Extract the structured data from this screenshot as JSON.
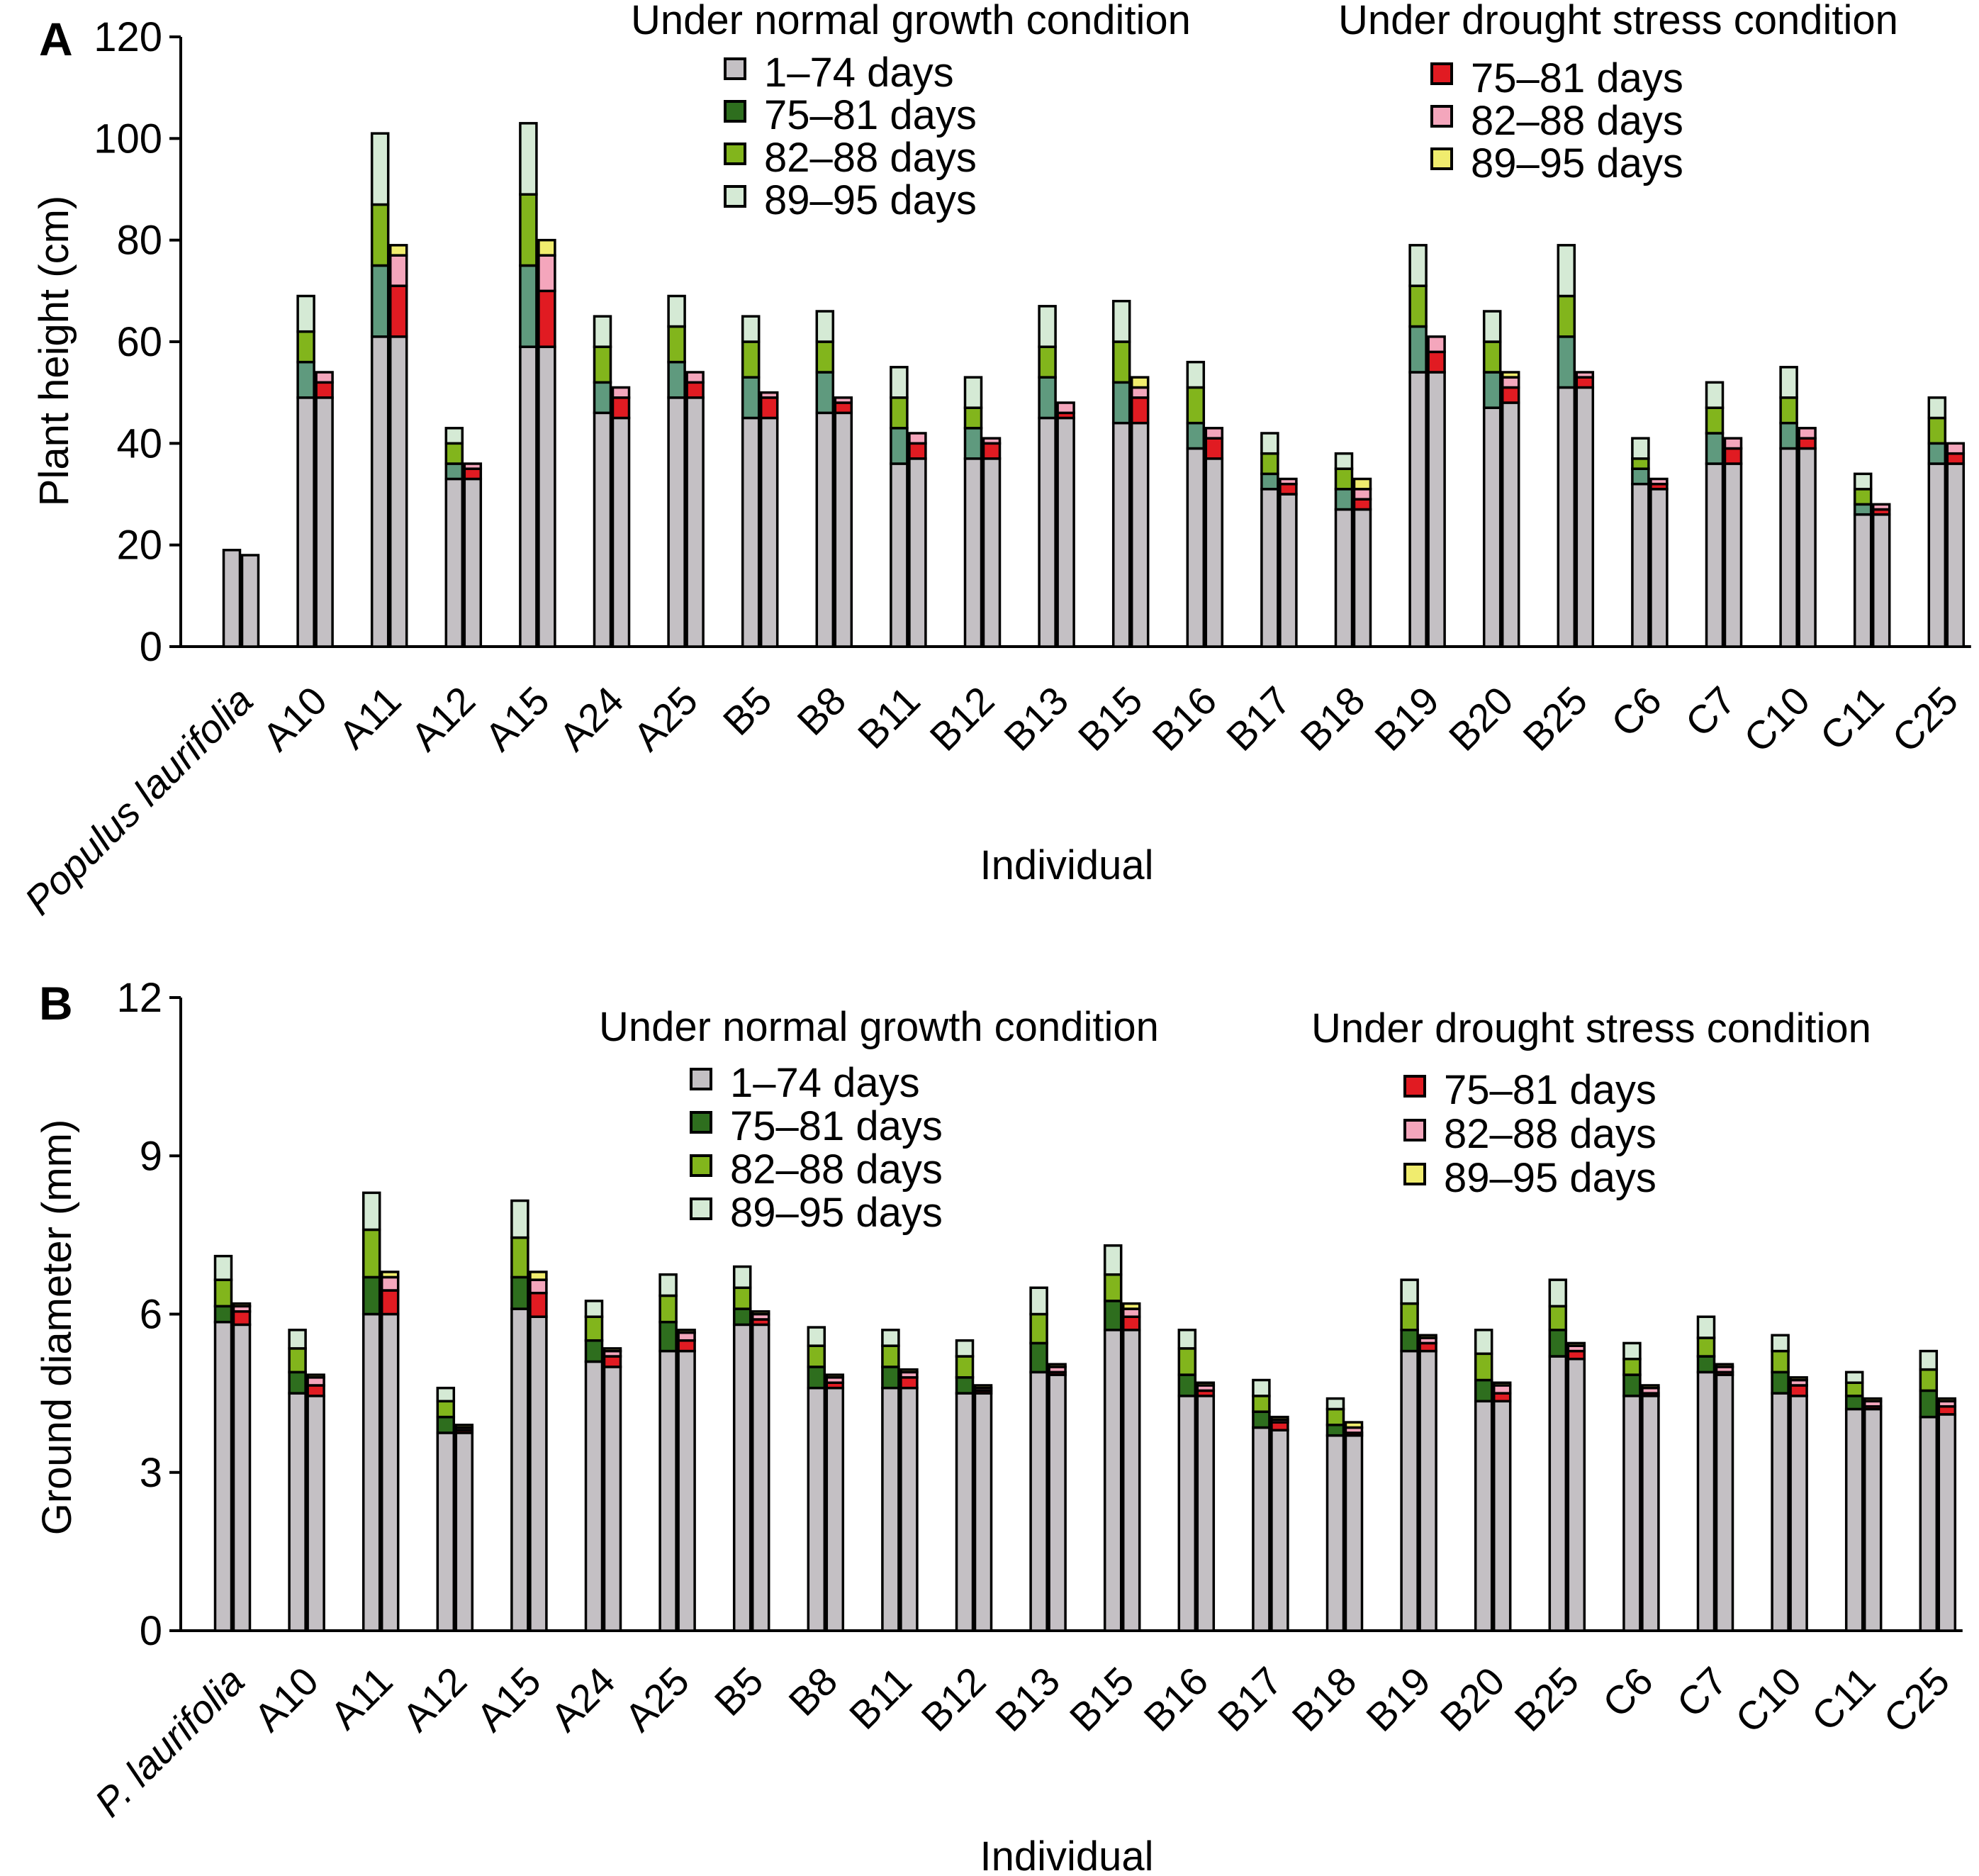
{
  "colors": {
    "d1_74": "#c4c0c4",
    "n75_81_height": "#5f9a7e",
    "n75_81_diameter": "#2e6e1e",
    "n82_88": "#82b51c",
    "n89_95": "#d5ead5",
    "s75_81": "#e11b22",
    "s82_88": "#f4a6bc",
    "s89_95": "#f0ec6e",
    "outline": "#000000"
  },
  "chart_data": [
    {
      "type": "bar",
      "stacked": true,
      "panel_label": "A",
      "xlabel": "Individual",
      "ylabel": "Plant height (cm)",
      "ylim": [
        0,
        120
      ],
      "yticks": [
        0,
        20,
        40,
        60,
        80,
        100,
        120
      ],
      "categories": [
        "Populus laurifolia",
        "A10",
        "A11",
        "A12",
        "A15",
        "A24",
        "A25",
        "B5",
        "B8",
        "B11",
        "B12",
        "B13",
        "B15",
        "B16",
        "B17",
        "B18",
        "B19",
        "B20",
        "B25",
        "C6",
        "C7",
        "C10",
        "C11",
        "C25"
      ],
      "italic_categories": [
        "Populus laurifolia"
      ],
      "legend": {
        "normal_title": "Under normal growth condition",
        "normal_items": [
          "1–74 days",
          "75–81 days",
          "82–88 days",
          "89–95 days"
        ],
        "drought_title": "Under drought stress condition",
        "drought_items": [
          "75–81 days",
          "82–88 days",
          "89–95 days"
        ]
      },
      "normal": {
        "d1_74": [
          19,
          49,
          61,
          33,
          59,
          46,
          49,
          45,
          46,
          36,
          37,
          45,
          44,
          39,
          31,
          27,
          54,
          47,
          51,
          32,
          36,
          39,
          26,
          36
        ],
        "d75_81": [
          0,
          7,
          14,
          3,
          16,
          6,
          7,
          8,
          8,
          7,
          6,
          8,
          8,
          5,
          3,
          4,
          9,
          7,
          10,
          3,
          6,
          5,
          2,
          4
        ],
        "d82_88": [
          0,
          6,
          12,
          4,
          14,
          7,
          7,
          7,
          6,
          6,
          4,
          6,
          8,
          7,
          4,
          4,
          8,
          6,
          8,
          2,
          5,
          5,
          3,
          5
        ],
        "d89_95": [
          0,
          7,
          14,
          3,
          14,
          6,
          6,
          5,
          6,
          6,
          6,
          8,
          8,
          5,
          4,
          3,
          8,
          6,
          10,
          4,
          5,
          6,
          3,
          4
        ]
      },
      "drought": {
        "d1_74": [
          18,
          49,
          61,
          33,
          59,
          45,
          49,
          45,
          46,
          37,
          37,
          45,
          44,
          37,
          30,
          27,
          54,
          48,
          51,
          31,
          36,
          39,
          26,
          36
        ],
        "d75_81": [
          0,
          3,
          10,
          2,
          11,
          4,
          3,
          4,
          2,
          3,
          3,
          1,
          5,
          4,
          2,
          2,
          4,
          3,
          2,
          1,
          3,
          2,
          1,
          2
        ],
        "d82_88": [
          0,
          2,
          6,
          1,
          7,
          2,
          2,
          1,
          1,
          2,
          1,
          2,
          2,
          2,
          1,
          2,
          3,
          2,
          1,
          1,
          2,
          2,
          1,
          2
        ],
        "d89_95": [
          0,
          0,
          2,
          0,
          3,
          0,
          0,
          0,
          0,
          0,
          0,
          0,
          2,
          0,
          0,
          2,
          0,
          1,
          0,
          0,
          0,
          0,
          0,
          0
        ]
      }
    },
    {
      "type": "bar",
      "stacked": true,
      "panel_label": "B",
      "xlabel": "Individual",
      "ylabel": "Ground diameter (mm)",
      "ylim": [
        0,
        12
      ],
      "yticks": [
        0,
        3,
        6,
        9,
        12
      ],
      "categories": [
        "P. laurifolia",
        "A10",
        "A11",
        "A12",
        "A15",
        "A24",
        "A25",
        "B5",
        "B8",
        "B11",
        "B12",
        "B13",
        "B15",
        "B16",
        "B17",
        "B18",
        "B19",
        "B20",
        "B25",
        "C6",
        "C7",
        "C10",
        "C11",
        "C25"
      ],
      "italic_categories": [
        "P. laurifolia"
      ],
      "legend": {
        "normal_title": "Under normal growth condition",
        "normal_items": [
          "1–74 days",
          "75–81 days",
          "82–88 days",
          "89–95 days"
        ],
        "drought_title": "Under drought stress condition",
        "drought_items": [
          "75–81 days",
          "82–88 days",
          "89–95 days"
        ]
      },
      "normal": {
        "d1_74": [
          5.85,
          4.5,
          6.0,
          3.75,
          6.1,
          5.1,
          5.3,
          5.8,
          4.6,
          4.6,
          4.5,
          4.9,
          5.7,
          4.45,
          3.85,
          3.7,
          5.3,
          4.35,
          5.2,
          4.45,
          4.9,
          4.5,
          4.2,
          4.05
        ],
        "d75_81": [
          0.3,
          0.4,
          0.7,
          0.3,
          0.6,
          0.4,
          0.55,
          0.3,
          0.4,
          0.4,
          0.3,
          0.55,
          0.55,
          0.4,
          0.3,
          0.2,
          0.4,
          0.4,
          0.5,
          0.4,
          0.3,
          0.4,
          0.25,
          0.5
        ],
        "d82_88": [
          0.5,
          0.45,
          0.9,
          0.3,
          0.75,
          0.45,
          0.5,
          0.4,
          0.4,
          0.4,
          0.4,
          0.55,
          0.5,
          0.5,
          0.3,
          0.3,
          0.5,
          0.5,
          0.45,
          0.3,
          0.35,
          0.4,
          0.25,
          0.4
        ],
        "d89_95": [
          0.45,
          0.35,
          0.7,
          0.25,
          0.7,
          0.3,
          0.4,
          0.4,
          0.35,
          0.3,
          0.3,
          0.5,
          0.55,
          0.35,
          0.3,
          0.2,
          0.45,
          0.45,
          0.5,
          0.3,
          0.4,
          0.3,
          0.2,
          0.35
        ]
      },
      "drought": {
        "d1_74": [
          5.8,
          4.45,
          6.0,
          3.75,
          5.95,
          5.0,
          5.3,
          5.8,
          4.6,
          4.6,
          4.5,
          4.85,
          5.7,
          4.45,
          3.8,
          3.7,
          5.3,
          4.35,
          5.15,
          4.45,
          4.85,
          4.45,
          4.2,
          4.1
        ],
        "d75_81": [
          0.25,
          0.2,
          0.45,
          0.05,
          0.45,
          0.2,
          0.2,
          0.1,
          0.1,
          0.2,
          0.05,
          0.05,
          0.25,
          0.1,
          0.15,
          0.05,
          0.15,
          0.15,
          0.15,
          0.05,
          0.05,
          0.2,
          0.05,
          0.15
        ],
        "d82_88": [
          0.1,
          0.15,
          0.25,
          0.05,
          0.25,
          0.1,
          0.15,
          0.1,
          0.1,
          0.1,
          0.05,
          0.1,
          0.15,
          0.1,
          0.05,
          0.1,
          0.1,
          0.15,
          0.1,
          0.1,
          0.1,
          0.1,
          0.1,
          0.1
        ],
        "d89_95": [
          0.05,
          0.05,
          0.1,
          0.05,
          0.15,
          0.05,
          0.05,
          0.05,
          0.05,
          0.05,
          0.05,
          0.05,
          0.1,
          0.05,
          0.05,
          0.1,
          0.05,
          0.05,
          0.05,
          0.05,
          0.05,
          0.05,
          0.05,
          0.05
        ]
      }
    }
  ]
}
